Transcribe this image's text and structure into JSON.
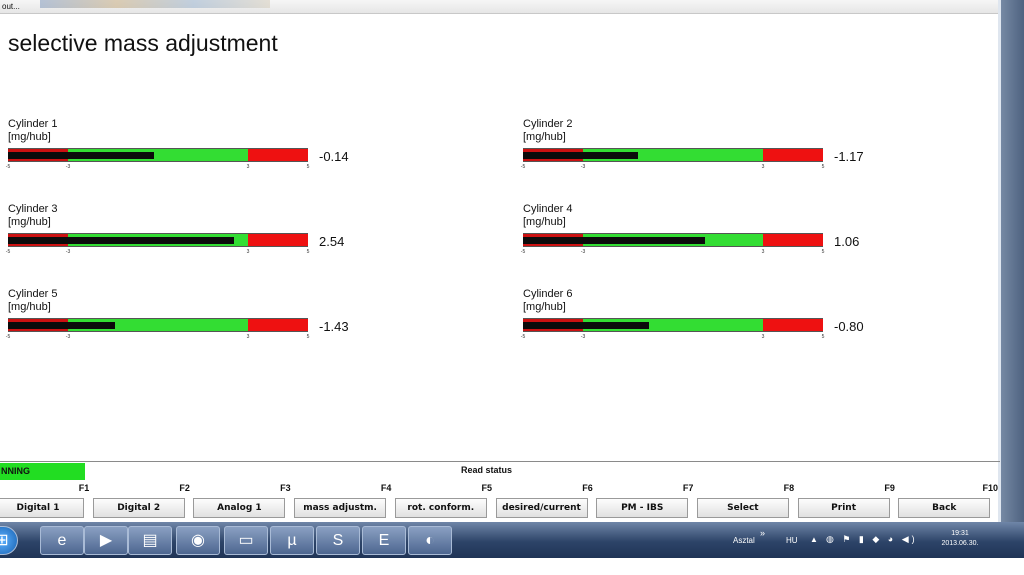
{
  "window": {
    "title_fragment": "out..."
  },
  "page_title": "selective mass adjustment",
  "scale_ticks": [
    "-5",
    "-3",
    "3",
    "5"
  ],
  "scale": {
    "min": -5,
    "max": 5,
    "green_min": -3,
    "green_max": 3
  },
  "cylinders": [
    {
      "name": "Cylinder 1",
      "unit": "[mg/hub]",
      "value": -0.14,
      "value_text": "-0.14"
    },
    {
      "name": "Cylinder 2",
      "unit": "[mg/hub]",
      "value": -1.17,
      "value_text": "-1.17"
    },
    {
      "name": "Cylinder 3",
      "unit": "[mg/hub]",
      "value": 2.54,
      "value_text": "2.54"
    },
    {
      "name": "Cylinder 4",
      "unit": "[mg/hub]",
      "value": 1.06,
      "value_text": "1.06"
    },
    {
      "name": "Cylinder 5",
      "unit": "[mg/hub]",
      "value": -1.43,
      "value_text": "-1.43"
    },
    {
      "name": "Cylinder 6",
      "unit": "[mg/hub]",
      "value": -0.8,
      "value_text": "-0.80"
    }
  ],
  "status": {
    "running_label": "NNING",
    "read_status": "Read status",
    "running_color": "#22dd22"
  },
  "function_keys": [
    {
      "key": "F1",
      "label": "Digital 1"
    },
    {
      "key": "F2",
      "label": "Digital 2"
    },
    {
      "key": "F3",
      "label": "Analog 1"
    },
    {
      "key": "F4",
      "label": "mass adjustm."
    },
    {
      "key": "F5",
      "label": "rot. conform."
    },
    {
      "key": "F6",
      "label": "desired/current"
    },
    {
      "key": "F7",
      "label": "PM - IBS"
    },
    {
      "key": "F8",
      "label": "Select"
    },
    {
      "key": "F9",
      "label": "Print"
    },
    {
      "key": "F10",
      "label": "Back"
    }
  ],
  "taskbar": {
    "apps": [
      "windows-start-icon",
      "internet-explorer-icon",
      "media-player-icon",
      "file-explorer-icon",
      "firefox-icon",
      "folder-icon",
      "utorrent-icon",
      "skype-icon",
      "evernote-icon",
      "bmw-icon"
    ],
    "desktop_label": "Asztal",
    "chevron": "»",
    "language": "HU",
    "time": "19:31",
    "date": "2013.06.30."
  },
  "colors": {
    "bar_red": "#cc1111",
    "bar_green": "#33dd33",
    "bar_fill": "#0b0b0b"
  }
}
